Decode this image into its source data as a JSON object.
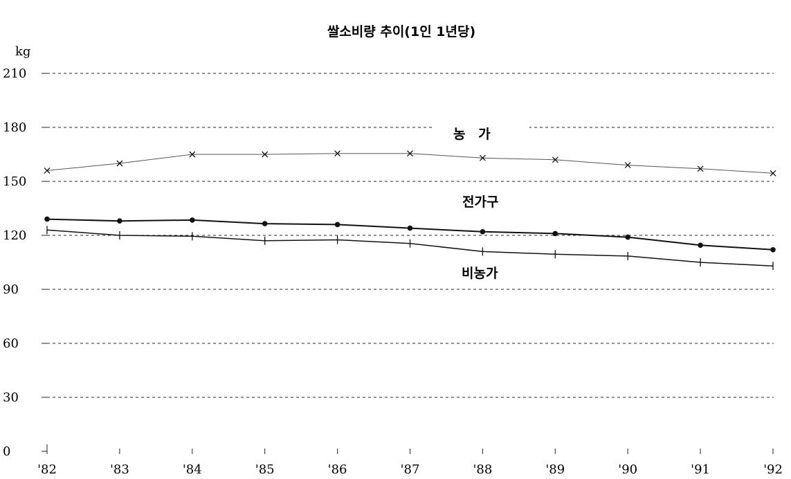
{
  "chart_data": {
    "type": "line",
    "title": "쌀소비량 추이(1인 1년당)",
    "ylabel": "kg",
    "xlabel": "",
    "ylim": [
      0,
      210
    ],
    "yticks": [
      0,
      30,
      60,
      90,
      120,
      150,
      180,
      210
    ],
    "grid": true,
    "categories": [
      "'82",
      "'83",
      "'84",
      "'85",
      "'86",
      "'87",
      "'88",
      "'89",
      "'90",
      "'91",
      "'92"
    ],
    "series": [
      {
        "name": "농 가",
        "marker": "x",
        "values": [
          156,
          160,
          165,
          165,
          165.5,
          165.5,
          163,
          162,
          159,
          157,
          154.5
        ]
      },
      {
        "name": "전가구",
        "marker": "dot",
        "values": [
          129,
          128,
          128.5,
          126.5,
          126,
          124,
          122,
          121,
          119,
          114.5,
          112
        ]
      },
      {
        "name": "비농가",
        "marker": "plus",
        "values": [
          123,
          120,
          119.5,
          117,
          117.5,
          115.5,
          111,
          109.5,
          108.5,
          105,
          103
        ]
      }
    ]
  }
}
